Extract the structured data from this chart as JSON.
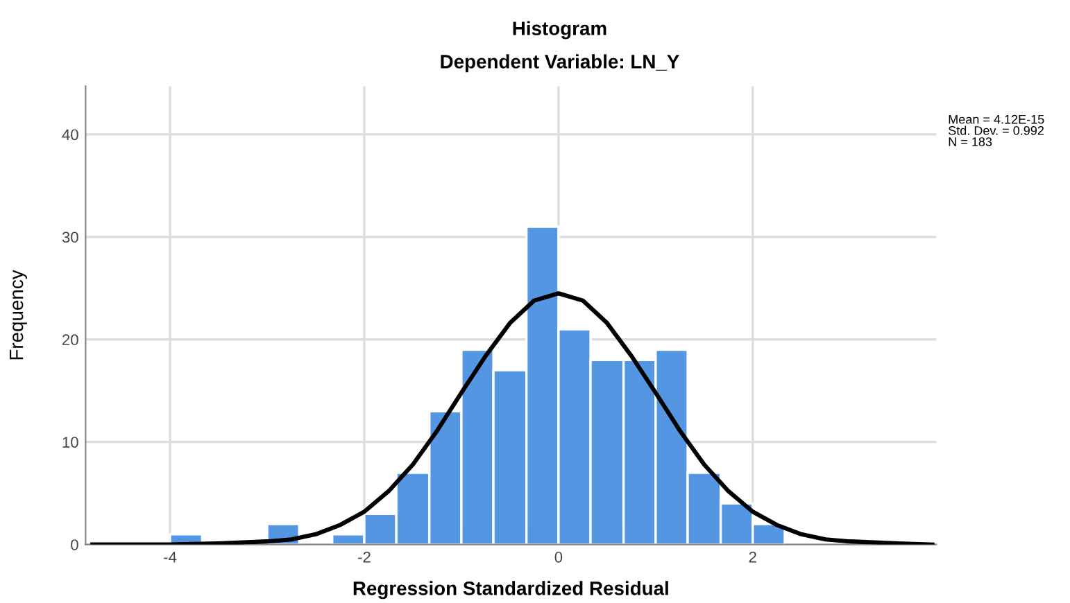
{
  "chart_data": {
    "type": "histogram",
    "title": "Histogram",
    "subtitle": "Dependent Variable: LN_Y",
    "xlabel": "Regression Standardized Residual",
    "ylabel": "Frequency",
    "bins": [
      -4,
      -3.67,
      -3,
      -2.67,
      -2.33,
      -2,
      -1.67,
      -1.33,
      -1,
      -0.67,
      -0.33,
      0,
      0.33,
      0.67,
      1,
      1.33,
      1.67,
      2,
      2.33
    ],
    "values": [
      1,
      0,
      2,
      0,
      1,
      3,
      7,
      13,
      19,
      17,
      31,
      21,
      18,
      18,
      19,
      7,
      4,
      2
    ],
    "color": "#5596e3",
    "series": [
      {
        "type": "line",
        "color": "#000000",
        "x": [
          -4.8,
          -4,
          -3.5,
          -3,
          -2.75,
          -2.5,
          -2.25,
          -2,
          -1.75,
          -1.5,
          -1.25,
          -1,
          -0.75,
          -0.5,
          -0.25,
          0,
          0.25,
          0.5,
          0.75,
          1,
          1.25,
          1.5,
          1.75,
          2,
          2.25,
          2.5,
          2.75,
          3,
          3.5,
          3.85
        ],
        "values": [
          0,
          0,
          0.1,
          0.3,
          0.5,
          1.0,
          1.9,
          3.2,
          5.2,
          7.8,
          11.1,
          14.8,
          18.4,
          21.6,
          23.8,
          24.5,
          23.8,
          21.6,
          18.4,
          14.8,
          11.1,
          7.8,
          5.2,
          3.2,
          1.9,
          1.0,
          0.5,
          0.3,
          0.1,
          0
        ]
      }
    ],
    "annotations": [
      "Mean = 4.12E-15\nStd. Dev. = 0.992\nN = 183"
    ],
    "xlim": [
      -4.87,
      3.89
    ],
    "ylim": [
      0,
      44.7
    ],
    "xticks": [
      -4,
      -2,
      0,
      2
    ],
    "yticks": [
      0,
      10,
      20,
      30,
      40
    ],
    "grid": true
  }
}
